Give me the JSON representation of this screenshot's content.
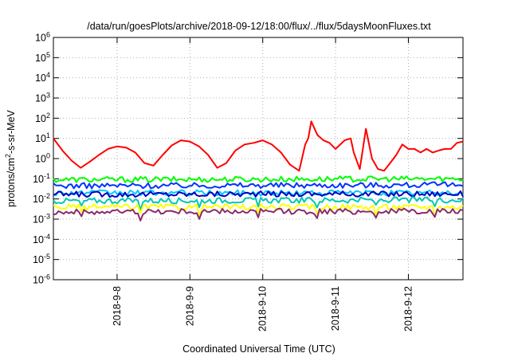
{
  "chart_data": {
    "type": "line",
    "title": "/data/run/goesPlots/archive/2018-09-12/18:00/flux/../flux/5daysMoonFluxes.txt",
    "xlabel": "Coordinated Universal Time (UTC)",
    "ylabel_parts": [
      "protons/cm",
      "2",
      "-s-sr-MeV"
    ],
    "y_scale": "log",
    "ylim": [
      1e-06,
      1000000.0
    ],
    "xlim": [
      "2018-09-07T03:00",
      "2018-09-12T18:00"
    ],
    "y_ticks": [
      {
        "base": "10",
        "exp": "-6"
      },
      {
        "base": "10",
        "exp": "-5"
      },
      {
        "base": "10",
        "exp": "-4"
      },
      {
        "base": "10",
        "exp": "-3"
      },
      {
        "base": "10",
        "exp": "-2"
      },
      {
        "base": "10",
        "exp": "-1"
      },
      {
        "base": "10",
        "exp": "0"
      },
      {
        "base": "10",
        "exp": "1"
      },
      {
        "base": "10",
        "exp": "2"
      },
      {
        "base": "10",
        "exp": "3"
      },
      {
        "base": "10",
        "exp": "4"
      },
      {
        "base": "10",
        "exp": "5"
      },
      {
        "base": "10",
        "exp": "6"
      }
    ],
    "x_ticks": [
      "2018-9-8",
      "2018-9-9",
      "2018-9-10",
      "2018-9-11",
      "2018-9-12"
    ],
    "x_tick_times": [
      "2018-09-08T00:00",
      "2018-09-09T00:00",
      "2018-09-10T00:00",
      "2018-09-11T00:00",
      "2018-09-12T00:00"
    ],
    "grid": true,
    "legend": "none",
    "series": [
      {
        "color": "#ff0000",
        "x": [
          "2018-09-07T03:00",
          "2018-09-07T06:00",
          "2018-09-07T09:00",
          "2018-09-07T12:00",
          "2018-09-07T15:00",
          "2018-09-07T18:00",
          "2018-09-07T21:00",
          "2018-09-08T00:00",
          "2018-09-08T03:00",
          "2018-09-08T06:00",
          "2018-09-08T09:00",
          "2018-09-08T12:00",
          "2018-09-08T15:00",
          "2018-09-08T18:00",
          "2018-09-08T21:00",
          "2018-09-09T00:00",
          "2018-09-09T03:00",
          "2018-09-09T06:00",
          "2018-09-09T09:00",
          "2018-09-09T12:00",
          "2018-09-09T15:00",
          "2018-09-09T18:00",
          "2018-09-09T21:00",
          "2018-09-10T00:00",
          "2018-09-10T03:00",
          "2018-09-10T06:00",
          "2018-09-10T09:00",
          "2018-09-10T12:00",
          "2018-09-10T14:00",
          "2018-09-10T15:00",
          "2018-09-10T16:00",
          "2018-09-10T18:00",
          "2018-09-10T20:00",
          "2018-09-10T22:00",
          "2018-09-11T00:00",
          "2018-09-11T03:00",
          "2018-09-11T05:00",
          "2018-09-11T06:00",
          "2018-09-11T08:00",
          "2018-09-11T10:00",
          "2018-09-11T12:00",
          "2018-09-11T14:00",
          "2018-09-11T16:00",
          "2018-09-11T18:00",
          "2018-09-11T20:00",
          "2018-09-11T22:00",
          "2018-09-12T00:00",
          "2018-09-12T02:00",
          "2018-09-12T04:00",
          "2018-09-12T06:00",
          "2018-09-12T08:00",
          "2018-09-12T10:00",
          "2018-09-12T12:00",
          "2018-09-12T14:00",
          "2018-09-12T16:00",
          "2018-09-12T18:00"
        ],
        "y": [
          10,
          2.5,
          0.8,
          0.35,
          0.7,
          1.5,
          3,
          4,
          3.5,
          2,
          0.6,
          0.45,
          1.5,
          4.5,
          8,
          7,
          4,
          1.5,
          0.35,
          0.6,
          2.5,
          5,
          6,
          8,
          5,
          2,
          0.5,
          0.25,
          5,
          10,
          70,
          15,
          8,
          6,
          3,
          8,
          10,
          2,
          0.3,
          30,
          1,
          0.3,
          0.25,
          0.6,
          1.5,
          5,
          3,
          3,
          2,
          3,
          2,
          2.5,
          3,
          3,
          6,
          7
        ]
      },
      {
        "color": "#00ff00",
        "x": [
          "2018-09-07T03:00",
          "2018-09-12T18:00"
        ],
        "y": [
          0.09,
          0.1
        ]
      },
      {
        "color": "#0033ff",
        "x": [
          "2018-09-07T03:00",
          "2018-09-12T18:00"
        ],
        "y": [
          0.045,
          0.05
        ]
      },
      {
        "color": "#00c8ff",
        "x": [
          "2018-09-07T03:00",
          "2018-09-12T18:00"
        ],
        "y": [
          0.02,
          0.02
        ]
      },
      {
        "color": "#0000c0",
        "x": [
          "2018-09-07T03:00",
          "2018-09-12T18:00"
        ],
        "y": [
          0.017,
          0.018
        ]
      },
      {
        "color": "#00c8b4",
        "x": [
          "2018-09-07T03:00",
          "2018-09-12T18:00"
        ],
        "y": [
          0.008,
          0.009
        ]
      },
      {
        "color": "#ffff00",
        "x": [
          "2018-09-07T03:00",
          "2018-09-12T18:00"
        ],
        "y": [
          0.004,
          0.004
        ]
      },
      {
        "color": "#8b2a6e",
        "x": [
          "2018-09-07T03:00",
          "2018-09-12T18:00"
        ],
        "y": [
          0.0023,
          0.0025
        ]
      }
    ]
  }
}
